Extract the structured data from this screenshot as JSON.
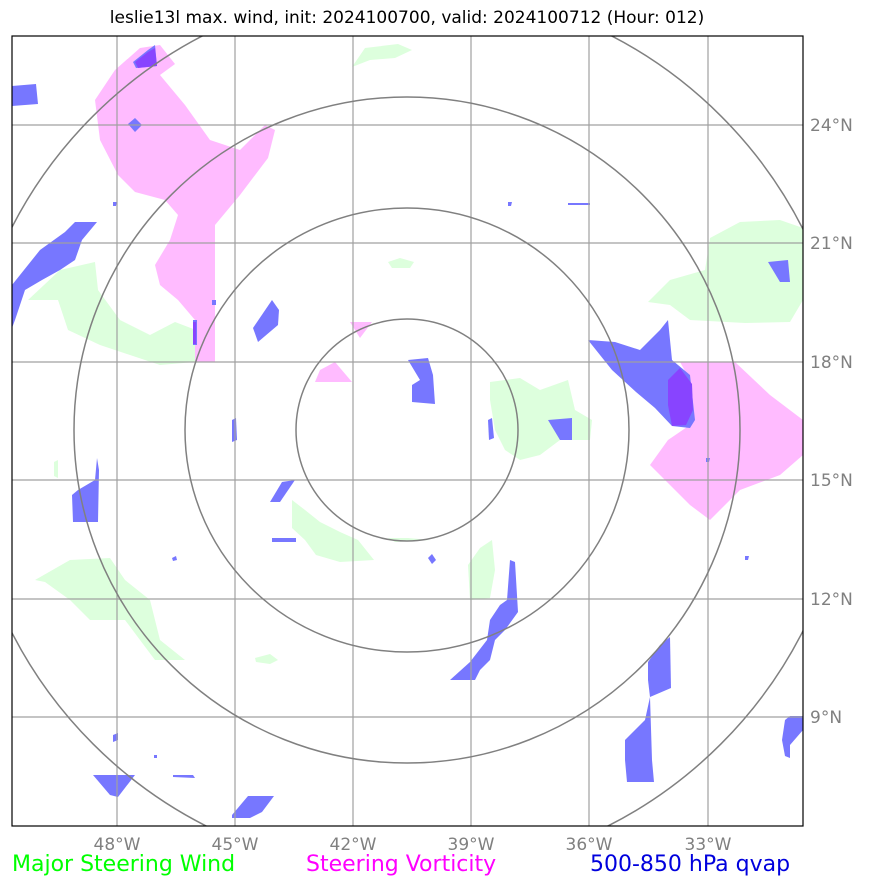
{
  "title": "leslie13l max. wind, init: 2024100700, valid: 2024100712 (Hour: 012)",
  "map": {
    "lon_ticks": [
      "48°W",
      "45°W",
      "42°W",
      "39°W",
      "36°W",
      "33°W"
    ],
    "lat_ticks": [
      "24°N",
      "21°N",
      "18°N",
      "15°N",
      "12°N",
      "9°N"
    ],
    "layer_colors": {
      "steering_wind": "#ddffdd",
      "steering_vorticity": "#ffbbff",
      "qvap": "#7777ff",
      "qvap_overlap": "#8844ff",
      "grid": "#a0a0a0",
      "range_rings": "#808080"
    },
    "range_rings_count": 4
  },
  "legend": {
    "wind": "Major Steering Wind",
    "vorticity": "Steering Vorticity",
    "qvap": "500-850 hPa qvap"
  }
}
